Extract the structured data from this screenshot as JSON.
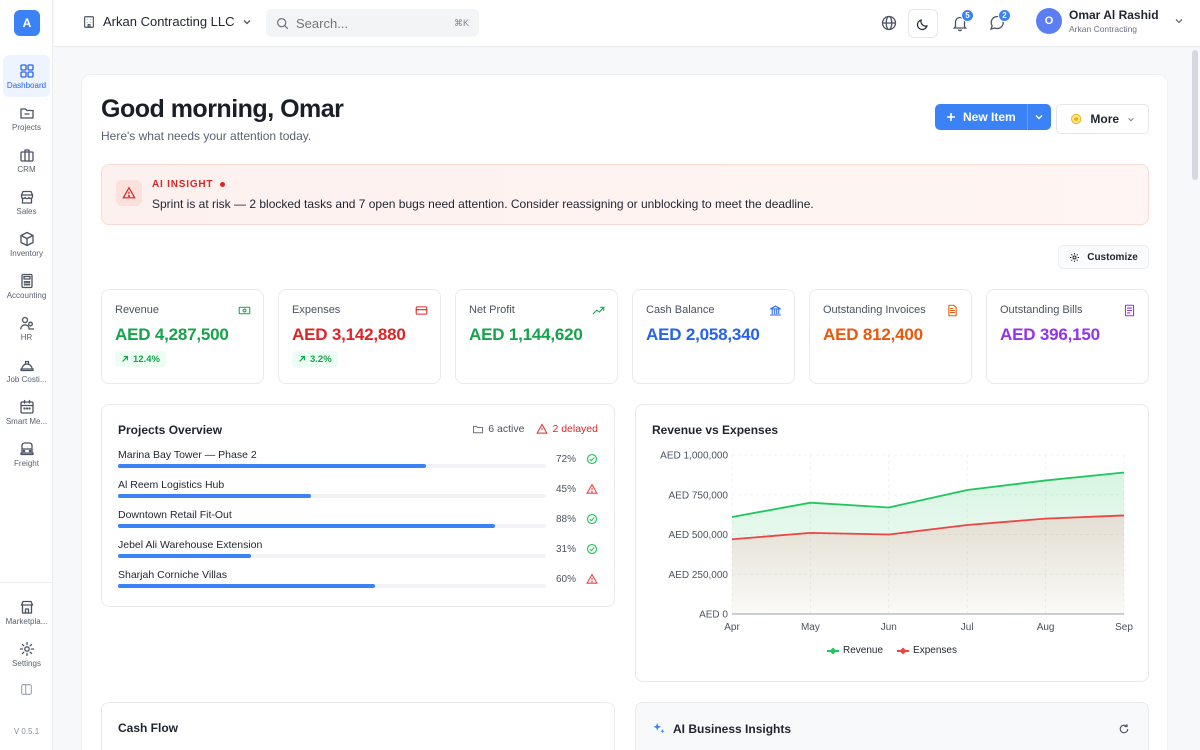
{
  "app": {
    "logo_letter": "A",
    "version": "V 0.5.1"
  },
  "sidebar": {
    "items": [
      {
        "label": "Dashboard",
        "icon": "grid-icon",
        "active": true
      },
      {
        "label": "Projects",
        "icon": "folder-icon"
      },
      {
        "label": "CRM",
        "icon": "briefcase-icon"
      },
      {
        "label": "Sales",
        "icon": "store-icon"
      },
      {
        "label": "Inventory",
        "icon": "box-icon"
      },
      {
        "label": "Accounting",
        "icon": "calculator-icon"
      },
      {
        "label": "HR",
        "icon": "users-icon"
      },
      {
        "label": "Job Costi...",
        "icon": "hardhat-icon"
      },
      {
        "label": "Smart Me...",
        "icon": "calendar-icon"
      },
      {
        "label": "Freight",
        "icon": "truck-icon"
      }
    ],
    "bottom": [
      {
        "label": "Marketpla...",
        "icon": "shop-icon"
      },
      {
        "label": "Settings",
        "icon": "gear-icon"
      }
    ]
  },
  "topbar": {
    "company": "Arkan Contracting LLC",
    "search_placeholder": "Search...",
    "search_shortcut": "⌘K",
    "notifications_count": "5",
    "messages_count": "2",
    "user": {
      "initial": "O",
      "name": "Omar Al Rashid",
      "org": "Arkan Contracting"
    }
  },
  "header": {
    "greeting": "Good morning, Omar",
    "subtitle": "Here's what needs your attention today.",
    "new_item": "New Item",
    "more": "More"
  },
  "alert": {
    "title": "AI INSIGHT",
    "message": "Sprint is at risk — 2 blocked tasks and 7 open bugs need attention. Consider reassigning or unblocking to meet the deadline."
  },
  "customize": "Customize",
  "kpis": [
    {
      "label": "Revenue",
      "value": "AED 4,287,500",
      "change": "12.4%",
      "color": "#16a34a",
      "icon": "banknote-icon",
      "icon_color": "#16a34a"
    },
    {
      "label": "Expenses",
      "value": "AED 3,142,880",
      "change": "3.2%",
      "color": "#dc2626",
      "icon": "credit-card-icon",
      "icon_color": "#dc2626"
    },
    {
      "label": "Net Profit",
      "value": "AED 1,144,620",
      "color": "#16a34a",
      "icon": "trend-up-icon",
      "icon_color": "#16a34a"
    },
    {
      "label": "Cash Balance",
      "value": "AED 2,058,340",
      "color": "#2563eb",
      "icon": "bank-icon",
      "icon_color": "#2563eb"
    },
    {
      "label": "Outstanding Invoices",
      "value": "AED 812,400",
      "color": "#ea580c",
      "icon": "document-icon",
      "icon_color": "#ea580c"
    },
    {
      "label": "Outstanding Bills",
      "value": "AED 396,150",
      "color": "#9333ea",
      "icon": "receipt-icon",
      "icon_color": "#9333ea"
    }
  ],
  "projects": {
    "title": "Projects Overview",
    "active": "6 active",
    "delayed": "2 delayed",
    "items": [
      {
        "name": "Marina Bay Tower — Phase 2",
        "progress": 72,
        "pct": "72%",
        "status": "ok"
      },
      {
        "name": "Al Reem Logistics Hub",
        "progress": 45,
        "pct": "45%",
        "status": "warn"
      },
      {
        "name": "Downtown Retail Fit-Out",
        "progress": 88,
        "pct": "88%",
        "status": "ok"
      },
      {
        "name": "Jebel Ali Warehouse Extension",
        "progress": 31,
        "pct": "31%",
        "status": "ok"
      },
      {
        "name": "Sharjah Corniche Villas",
        "progress": 60,
        "pct": "60%",
        "status": "warn"
      }
    ]
  },
  "chart_data": {
    "type": "area",
    "title": "Revenue vs Expenses",
    "categories": [
      "Apr",
      "May",
      "Jun",
      "Jul",
      "Aug",
      "Sep"
    ],
    "y_ticks": [
      "AED 0",
      "AED 250,000",
      "AED 500,000",
      "AED 750,000",
      "AED 1,000,000"
    ],
    "ylim": [
      0,
      1000000
    ],
    "grid": true,
    "legend": "bottom",
    "series": [
      {
        "name": "Revenue",
        "color": "#22c55e",
        "values": [
          610000,
          700000,
          670000,
          780000,
          840000,
          890000
        ]
      },
      {
        "name": "Expenses",
        "color": "#ef4444",
        "values": [
          470000,
          510000,
          500000,
          560000,
          600000,
          620000
        ]
      }
    ]
  },
  "cash_flow": {
    "title": "Cash Flow"
  },
  "ai_insights": {
    "title": "AI Business Insights"
  }
}
